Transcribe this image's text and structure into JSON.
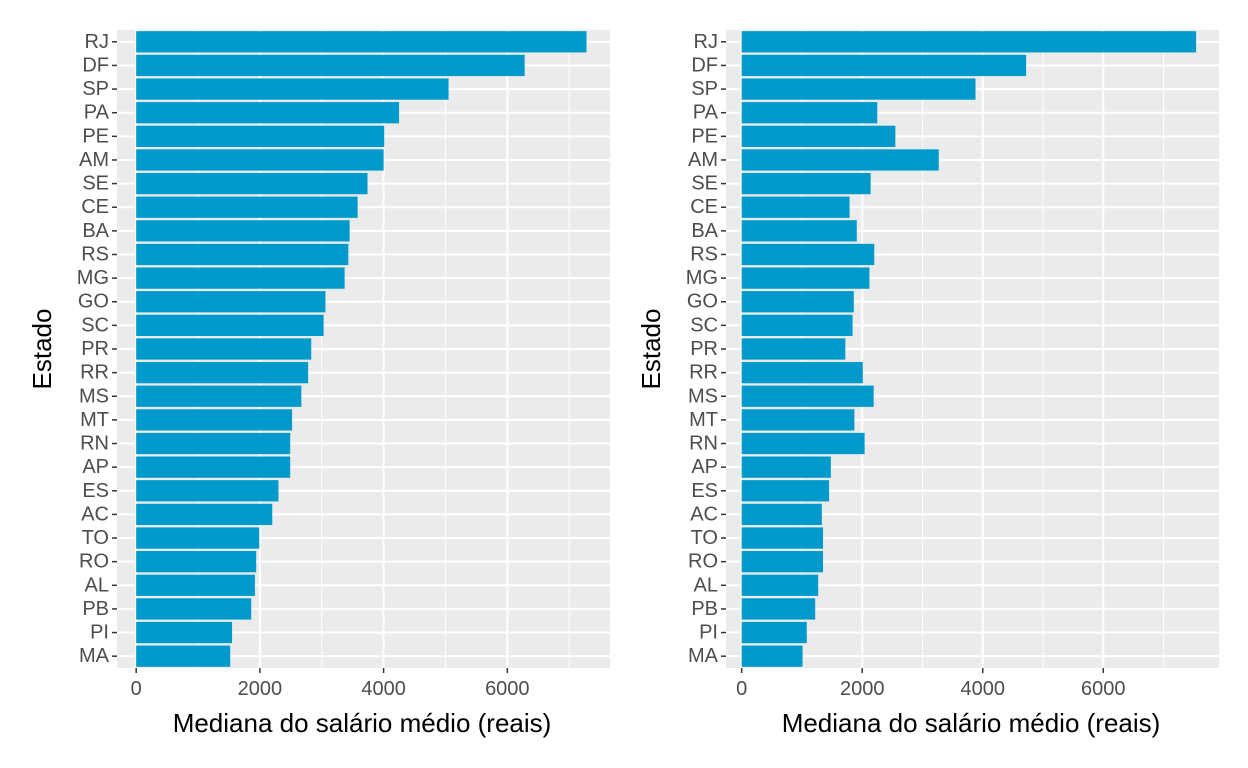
{
  "chart_data": [
    {
      "type": "bar",
      "orientation": "horizontal",
      "categories": [
        "RJ",
        "DF",
        "SP",
        "PA",
        "PE",
        "AM",
        "SE",
        "CE",
        "BA",
        "RS",
        "MG",
        "GO",
        "SC",
        "PR",
        "RR",
        "MS",
        "MT",
        "RN",
        "AP",
        "ES",
        "AC",
        "TO",
        "RO",
        "AL",
        "PB",
        "PI",
        "MA"
      ],
      "values": [
        7280,
        6280,
        5050,
        4250,
        4010,
        4000,
        3740,
        3580,
        3450,
        3430,
        3370,
        3060,
        3030,
        2830,
        2780,
        2670,
        2520,
        2490,
        2490,
        2300,
        2200,
        1990,
        1940,
        1920,
        1860,
        1550,
        1520
      ],
      "xlabel": "Mediana do salário médio (reais)",
      "ylabel": "Estado",
      "xlim": [
        -310,
        7660
      ],
      "xticks": [
        0,
        2000,
        4000,
        6000
      ],
      "xtick_labels": [
        "0",
        "2000",
        "4000",
        "6000"
      ],
      "grid": true,
      "bar_color": "#0099CC",
      "panel_background": "#EBEBEB"
    },
    {
      "type": "bar",
      "orientation": "horizontal",
      "categories": [
        "RJ",
        "DF",
        "SP",
        "PA",
        "PE",
        "AM",
        "SE",
        "CE",
        "BA",
        "RS",
        "MG",
        "GO",
        "SC",
        "PR",
        "RR",
        "MS",
        "MT",
        "RN",
        "AP",
        "ES",
        "AC",
        "TO",
        "RO",
        "AL",
        "PB",
        "PI",
        "MA"
      ],
      "values": [
        7540,
        4720,
        3880,
        2250,
        2550,
        3270,
        2140,
        1790,
        1910,
        2200,
        2120,
        1860,
        1840,
        1720,
        2010,
        2190,
        1870,
        2040,
        1480,
        1450,
        1330,
        1350,
        1350,
        1270,
        1220,
        1080,
        1010
      ],
      "xlabel": "Mediana do salário médio (reais)",
      "ylabel": "Estado",
      "xlim": [
        -260,
        7920
      ],
      "xticks": [
        0,
        2000,
        4000,
        6000
      ],
      "xtick_labels": [
        "0",
        "2000",
        "4000",
        "6000"
      ],
      "grid": true,
      "bar_color": "#0099CC",
      "panel_background": "#EBEBEB"
    }
  ]
}
